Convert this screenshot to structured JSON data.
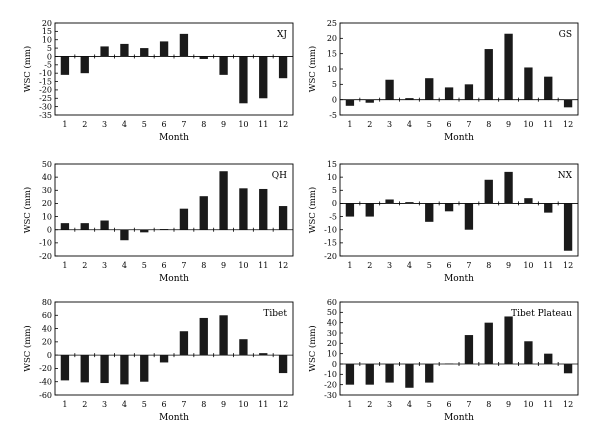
{
  "chart_data": [
    {
      "type": "bar",
      "title": "XJ",
      "xlabel": "Month",
      "ylabel": "WSC (mm)",
      "categories": [
        "1",
        "2",
        "3",
        "4",
        "5",
        "6",
        "7",
        "8",
        "9",
        "10",
        "11",
        "12"
      ],
      "values": [
        -11,
        -10,
        6,
        7.5,
        5,
        9,
        13.5,
        -1.5,
        -11,
        -28,
        -25,
        -13
      ],
      "ylim": [
        -35,
        20
      ],
      "yticks": [
        20,
        15,
        10,
        5,
        0,
        -5,
        -10,
        -15,
        -20,
        -25,
        -30,
        -35
      ]
    },
    {
      "type": "bar",
      "title": "GS",
      "xlabel": "Month",
      "ylabel": "WSC (mm)",
      "categories": [
        "1",
        "2",
        "3",
        "4",
        "5",
        "6",
        "7",
        "8",
        "9",
        "10",
        "11",
        "12"
      ],
      "values": [
        -2,
        -1,
        6.5,
        0.5,
        7,
        4,
        5,
        16.5,
        21.5,
        10.5,
        7.5,
        -2.5
      ],
      "ylim": [
        -5,
        25
      ],
      "yticks": [
        25,
        20,
        15,
        10,
        5,
        0,
        -5
      ]
    },
    {
      "type": "bar",
      "title": "QH",
      "xlabel": "Month",
      "ylabel": "WSC (mm)",
      "categories": [
        "1",
        "2",
        "3",
        "4",
        "5",
        "6",
        "7",
        "8",
        "9",
        "10",
        "11",
        "12"
      ],
      "values": [
        5,
        5,
        7,
        -8,
        -2,
        0.5,
        16,
        25.5,
        44.5,
        31.5,
        31,
        18
      ],
      "ylim": [
        -20,
        50
      ],
      "yticks": [
        50,
        40,
        30,
        20,
        10,
        0,
        -10,
        -20
      ]
    },
    {
      "type": "bar",
      "title": "NX",
      "xlabel": "Month",
      "ylabel": "WSC (mm)",
      "categories": [
        "1",
        "2",
        "3",
        "4",
        "5",
        "6",
        "7",
        "8",
        "9",
        "10",
        "11",
        "12"
      ],
      "values": [
        -5,
        -5,
        1.5,
        0.5,
        -7,
        -3,
        -10,
        9,
        12,
        2,
        -3.5,
        -18
      ],
      "ylim": [
        -20,
        15
      ],
      "yticks": [
        15,
        10,
        5,
        0,
        -5,
        -10,
        -15,
        -20
      ]
    },
    {
      "type": "bar",
      "title": "Tibet",
      "xlabel": "Month",
      "ylabel": "WSC (mm)",
      "categories": [
        "1",
        "2",
        "3",
        "4",
        "5",
        "6",
        "7",
        "8",
        "9",
        "10",
        "11",
        "12"
      ],
      "values": [
        -38,
        -41,
        -42,
        -44,
        -40,
        -11,
        36,
        56,
        60,
        24,
        3,
        -27
      ],
      "ylim": [
        -60,
        80
      ],
      "yticks": [
        80,
        60,
        40,
        20,
        0,
        -20,
        -40,
        -60
      ]
    },
    {
      "type": "bar",
      "title": "Tibet Plateau",
      "xlabel": "Month",
      "ylabel": "WSC (mm)",
      "categories": [
        "1",
        "2",
        "3",
        "4",
        "5",
        "6",
        "7",
        "8",
        "9",
        "10",
        "11",
        "12"
      ],
      "values": [
        -20,
        -20,
        -18,
        -23,
        -18,
        0.5,
        28,
        40,
        46,
        22,
        10,
        -9
      ],
      "ylim": [
        -30,
        60
      ],
      "yticks": [
        60,
        50,
        40,
        30,
        20,
        10,
        0,
        -10,
        -20,
        -30
      ]
    }
  ]
}
